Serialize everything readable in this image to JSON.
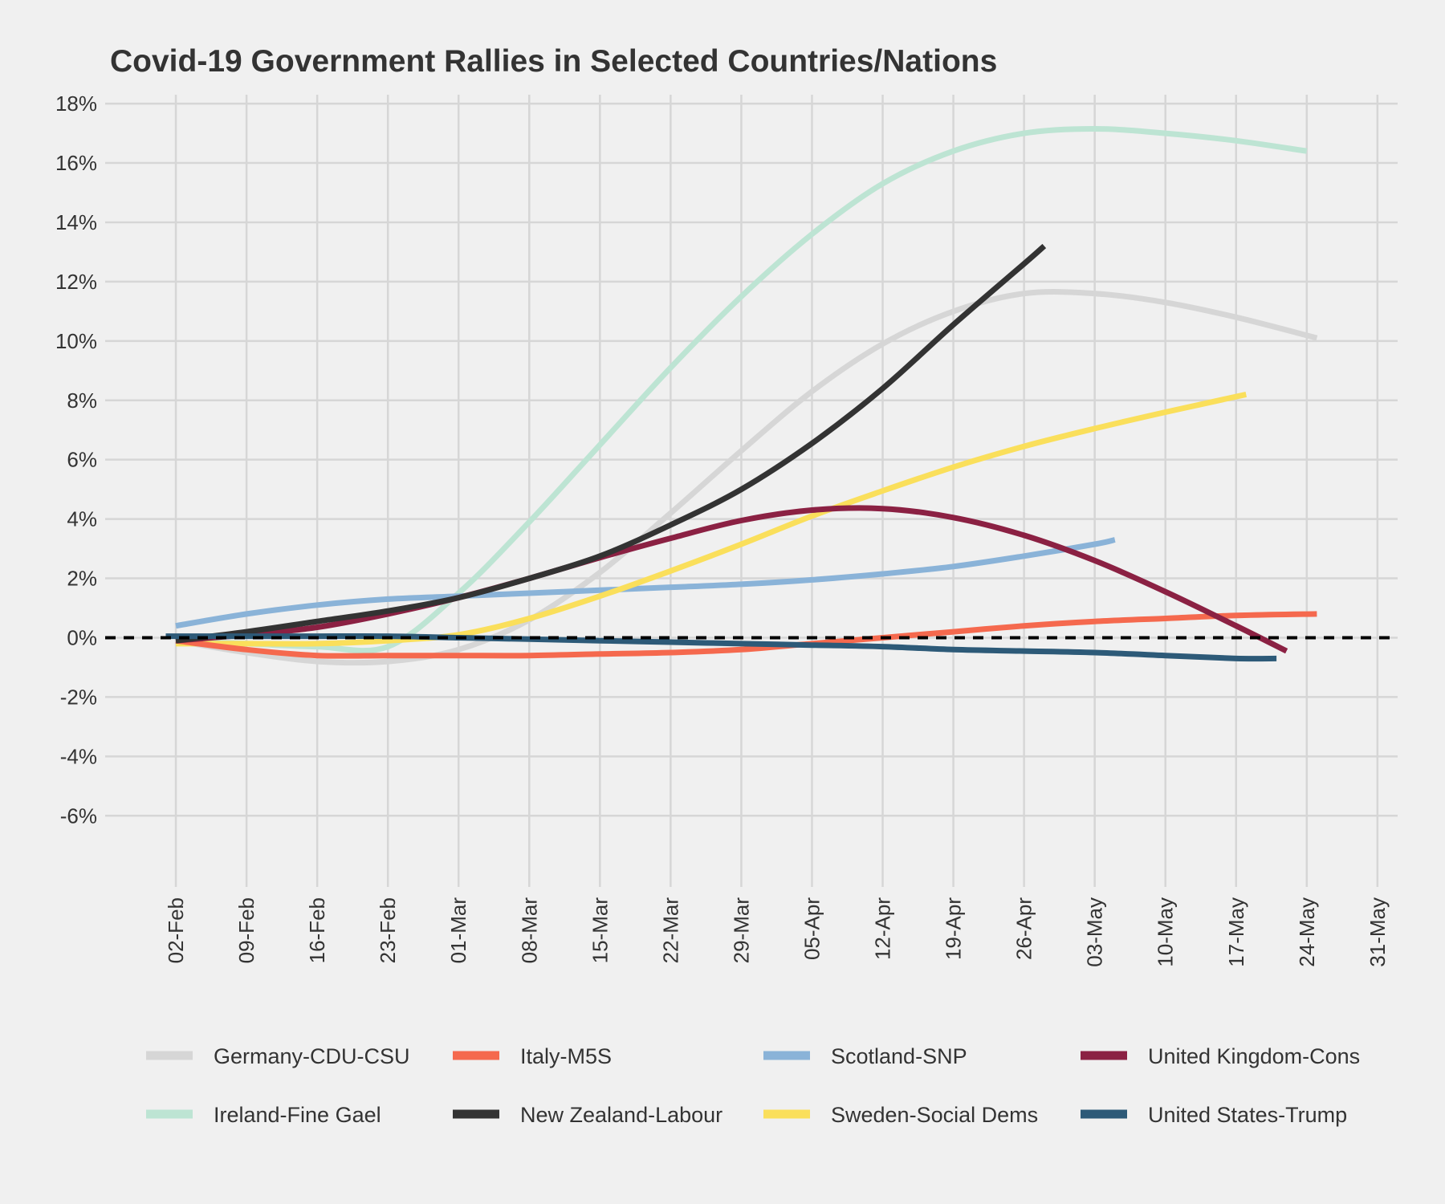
{
  "chart_data": {
    "type": "line",
    "title": "Covid-19 Government Rallies in Selected Countries/Nations",
    "xlabel": "",
    "ylabel": "",
    "x_tick_labels": [
      "02-Feb",
      "09-Feb",
      "16-Feb",
      "23-Feb",
      "01-Mar",
      "08-Mar",
      "15-Mar",
      "22-Mar",
      "29-Mar",
      "05-Apr",
      "12-Apr",
      "19-Apr",
      "26-Apr",
      "03-May",
      "10-May",
      "17-May",
      "24-May",
      "31-May"
    ],
    "x_tick_dates": [
      "2020-02-02",
      "2020-02-09",
      "2020-02-16",
      "2020-02-23",
      "2020-03-01",
      "2020-03-08",
      "2020-03-15",
      "2020-03-22",
      "2020-03-29",
      "2020-04-05",
      "2020-04-12",
      "2020-04-19",
      "2020-04-26",
      "2020-05-03",
      "2020-05-10",
      "2020-05-17",
      "2020-05-24",
      "2020-05-31"
    ],
    "y_tick_labels": [
      "-6%",
      "-4%",
      "-2%",
      "0%",
      "2%",
      "4%",
      "6%",
      "8%",
      "10%",
      "12%",
      "14%",
      "16%",
      "18%"
    ],
    "y_ticks": [
      -6,
      -4,
      -2,
      0,
      2,
      4,
      6,
      8,
      10,
      12,
      14,
      16,
      18
    ],
    "xlim": [
      "2020-01-26",
      "2020-06-02"
    ],
    "ylim": [
      -8.4,
      18.3
    ],
    "grid": true,
    "reference_line": {
      "y": 0,
      "style": "dashed",
      "color": "#000000"
    },
    "legend_position": "bottom",
    "series": [
      {
        "name": "Germany-CDU-CSU",
        "color": "#d6d6d6",
        "x": [
          "2020-02-02",
          "2020-02-09",
          "2020-02-16",
          "2020-02-23",
          "2020-03-01",
          "2020-03-08",
          "2020-03-15",
          "2020-03-22",
          "2020-03-29",
          "2020-04-05",
          "2020-04-12",
          "2020-04-19",
          "2020-04-26",
          "2020-05-03",
          "2020-05-10",
          "2020-05-17",
          "2020-05-25"
        ],
        "values": [
          -0.1,
          -0.5,
          -0.8,
          -0.8,
          -0.4,
          0.6,
          2.2,
          4.2,
          6.3,
          8.3,
          9.9,
          11.0,
          11.6,
          11.6,
          11.3,
          10.8,
          10.1
        ]
      },
      {
        "name": "Italy-M5S",
        "color": "#f5694e",
        "x": [
          "2020-02-02",
          "2020-02-09",
          "2020-02-16",
          "2020-02-23",
          "2020-03-01",
          "2020-03-08",
          "2020-03-15",
          "2020-03-22",
          "2020-03-29",
          "2020-04-05",
          "2020-04-12",
          "2020-04-19",
          "2020-04-26",
          "2020-05-03",
          "2020-05-10",
          "2020-05-17",
          "2020-05-25"
        ],
        "values": [
          -0.1,
          -0.4,
          -0.6,
          -0.6,
          -0.6,
          -0.6,
          -0.55,
          -0.5,
          -0.4,
          -0.2,
          0.0,
          0.2,
          0.4,
          0.55,
          0.65,
          0.75,
          0.8
        ]
      },
      {
        "name": "Scotland-SNP",
        "color": "#8ab3d8",
        "x": [
          "2020-02-02",
          "2020-02-09",
          "2020-02-16",
          "2020-02-23",
          "2020-03-01",
          "2020-03-08",
          "2020-03-15",
          "2020-03-22",
          "2020-03-29",
          "2020-04-05",
          "2020-04-12",
          "2020-04-19",
          "2020-04-26",
          "2020-05-03",
          "2020-05-05"
        ],
        "values": [
          0.4,
          0.8,
          1.1,
          1.3,
          1.4,
          1.5,
          1.6,
          1.7,
          1.8,
          1.95,
          2.15,
          2.4,
          2.75,
          3.15,
          3.3
        ]
      },
      {
        "name": "United Kingdom-Cons",
        "color": "#8b2143",
        "x": [
          "2020-02-02",
          "2020-02-09",
          "2020-02-16",
          "2020-02-23",
          "2020-03-01",
          "2020-03-08",
          "2020-03-15",
          "2020-03-22",
          "2020-03-29",
          "2020-04-05",
          "2020-04-12",
          "2020-04-19",
          "2020-04-26",
          "2020-05-03",
          "2020-05-10",
          "2020-05-17",
          "2020-05-22"
        ],
        "values": [
          -0.1,
          0.1,
          0.35,
          0.8,
          1.35,
          2.0,
          2.7,
          3.35,
          3.95,
          4.3,
          4.35,
          4.05,
          3.45,
          2.6,
          1.55,
          0.4,
          -0.45
        ]
      },
      {
        "name": "Ireland-Fine Gael",
        "color": "#bde4d3",
        "x": [
          "2020-02-02",
          "2020-02-09",
          "2020-02-16",
          "2020-02-23",
          "2020-03-01",
          "2020-03-08",
          "2020-03-15",
          "2020-03-22",
          "2020-03-29",
          "2020-04-05",
          "2020-04-12",
          "2020-04-19",
          "2020-04-26",
          "2020-05-03",
          "2020-05-10",
          "2020-05-17",
          "2020-05-24"
        ],
        "values": [
          -0.1,
          -0.2,
          -0.3,
          -0.3,
          1.5,
          3.9,
          6.5,
          9.1,
          11.5,
          13.6,
          15.3,
          16.4,
          17.0,
          17.15,
          17.0,
          16.75,
          16.4
        ]
      },
      {
        "name": "New Zealand-Labour",
        "color": "#333333",
        "x": [
          "2020-02-02",
          "2020-02-09",
          "2020-02-16",
          "2020-02-23",
          "2020-03-01",
          "2020-03-08",
          "2020-03-15",
          "2020-03-22",
          "2020-03-29",
          "2020-04-05",
          "2020-04-12",
          "2020-04-19",
          "2020-04-26",
          "2020-04-28"
        ],
        "values": [
          -0.1,
          0.2,
          0.55,
          0.9,
          1.35,
          2.0,
          2.75,
          3.8,
          5.0,
          6.55,
          8.4,
          10.55,
          12.6,
          13.2
        ]
      },
      {
        "name": "Sweden-Social Dems",
        "color": "#fadf5b",
        "x": [
          "2020-02-02",
          "2020-02-09",
          "2020-02-16",
          "2020-02-23",
          "2020-03-01",
          "2020-03-08",
          "2020-03-15",
          "2020-03-22",
          "2020-03-29",
          "2020-04-05",
          "2020-04-12",
          "2020-04-19",
          "2020-04-26",
          "2020-05-03",
          "2020-05-10",
          "2020-05-18"
        ],
        "values": [
          -0.2,
          -0.2,
          -0.2,
          -0.1,
          0.1,
          0.65,
          1.4,
          2.25,
          3.15,
          4.1,
          4.95,
          5.75,
          6.45,
          7.05,
          7.6,
          8.2
        ]
      },
      {
        "name": "United States-Trump",
        "color": "#2d5a78",
        "x": [
          "2020-02-01",
          "2020-02-09",
          "2020-02-16",
          "2020-02-23",
          "2020-03-01",
          "2020-03-08",
          "2020-03-15",
          "2020-03-22",
          "2020-03-29",
          "2020-04-05",
          "2020-04-12",
          "2020-04-19",
          "2020-04-26",
          "2020-05-03",
          "2020-05-10",
          "2020-05-17",
          "2020-05-21"
        ],
        "values": [
          0.05,
          0.05,
          0.05,
          0.05,
          0.0,
          -0.05,
          -0.1,
          -0.15,
          -0.2,
          -0.25,
          -0.3,
          -0.4,
          -0.45,
          -0.5,
          -0.6,
          -0.7,
          -0.7
        ]
      }
    ]
  }
}
